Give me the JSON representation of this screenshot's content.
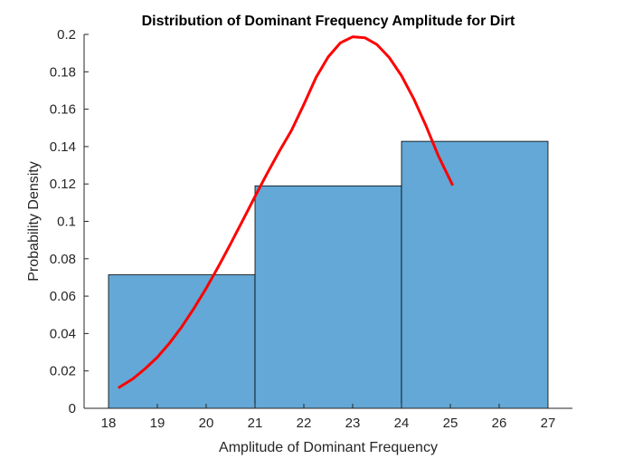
{
  "chart_data": {
    "type": "bar",
    "title": "Distribution of Dominant Frequency Amplitude for Dirt",
    "xlabel": "Amplitude of Dominant Frequency",
    "ylabel": "Probability Density",
    "xlim": [
      17.5,
      27.5
    ],
    "ylim": [
      0,
      0.2
    ],
    "xticks": [
      "18",
      "19",
      "20",
      "21",
      "22",
      "23",
      "24",
      "25",
      "26",
      "27"
    ],
    "yticks": [
      "0",
      "0.02",
      "0.04",
      "0.06",
      "0.08",
      "0.1",
      "0.12",
      "0.14",
      "0.16",
      "0.18",
      "0.2"
    ],
    "grid": false,
    "legend": "none",
    "bar_color": "#63a8d6",
    "bar_edge_color": "#000000",
    "bins": [
      {
        "start": 18,
        "end": 21,
        "value": 0.0714
      },
      {
        "start": 21,
        "end": 24,
        "value": 0.119
      },
      {
        "start": 24,
        "end": 27,
        "value": 0.1428
      }
    ],
    "curve": {
      "color": "#ff0000",
      "points": [
        [
          18.2,
          0.0109
        ],
        [
          18.5,
          0.0158
        ],
        [
          18.75,
          0.0212
        ],
        [
          19.0,
          0.0273
        ],
        [
          19.25,
          0.0349
        ],
        [
          19.5,
          0.0436
        ],
        [
          19.75,
          0.0535
        ],
        [
          20.0,
          0.0642
        ],
        [
          20.25,
          0.0758
        ],
        [
          20.5,
          0.088
        ],
        [
          20.75,
          0.1006
        ],
        [
          21.0,
          0.1133
        ],
        [
          21.25,
          0.1257
        ],
        [
          21.5,
          0.1376
        ],
        [
          21.75,
          0.1488
        ],
        [
          22.0,
          0.1625
        ],
        [
          22.25,
          0.177
        ],
        [
          22.5,
          0.188
        ],
        [
          22.75,
          0.1955
        ],
        [
          23.0,
          0.1987
        ],
        [
          23.25,
          0.1982
        ],
        [
          23.5,
          0.1945
        ],
        [
          23.75,
          0.1876
        ],
        [
          24.0,
          0.1779
        ],
        [
          24.25,
          0.1656
        ],
        [
          24.5,
          0.1512
        ],
        [
          24.75,
          0.1353
        ],
        [
          25.05,
          0.1192
        ]
      ]
    }
  }
}
